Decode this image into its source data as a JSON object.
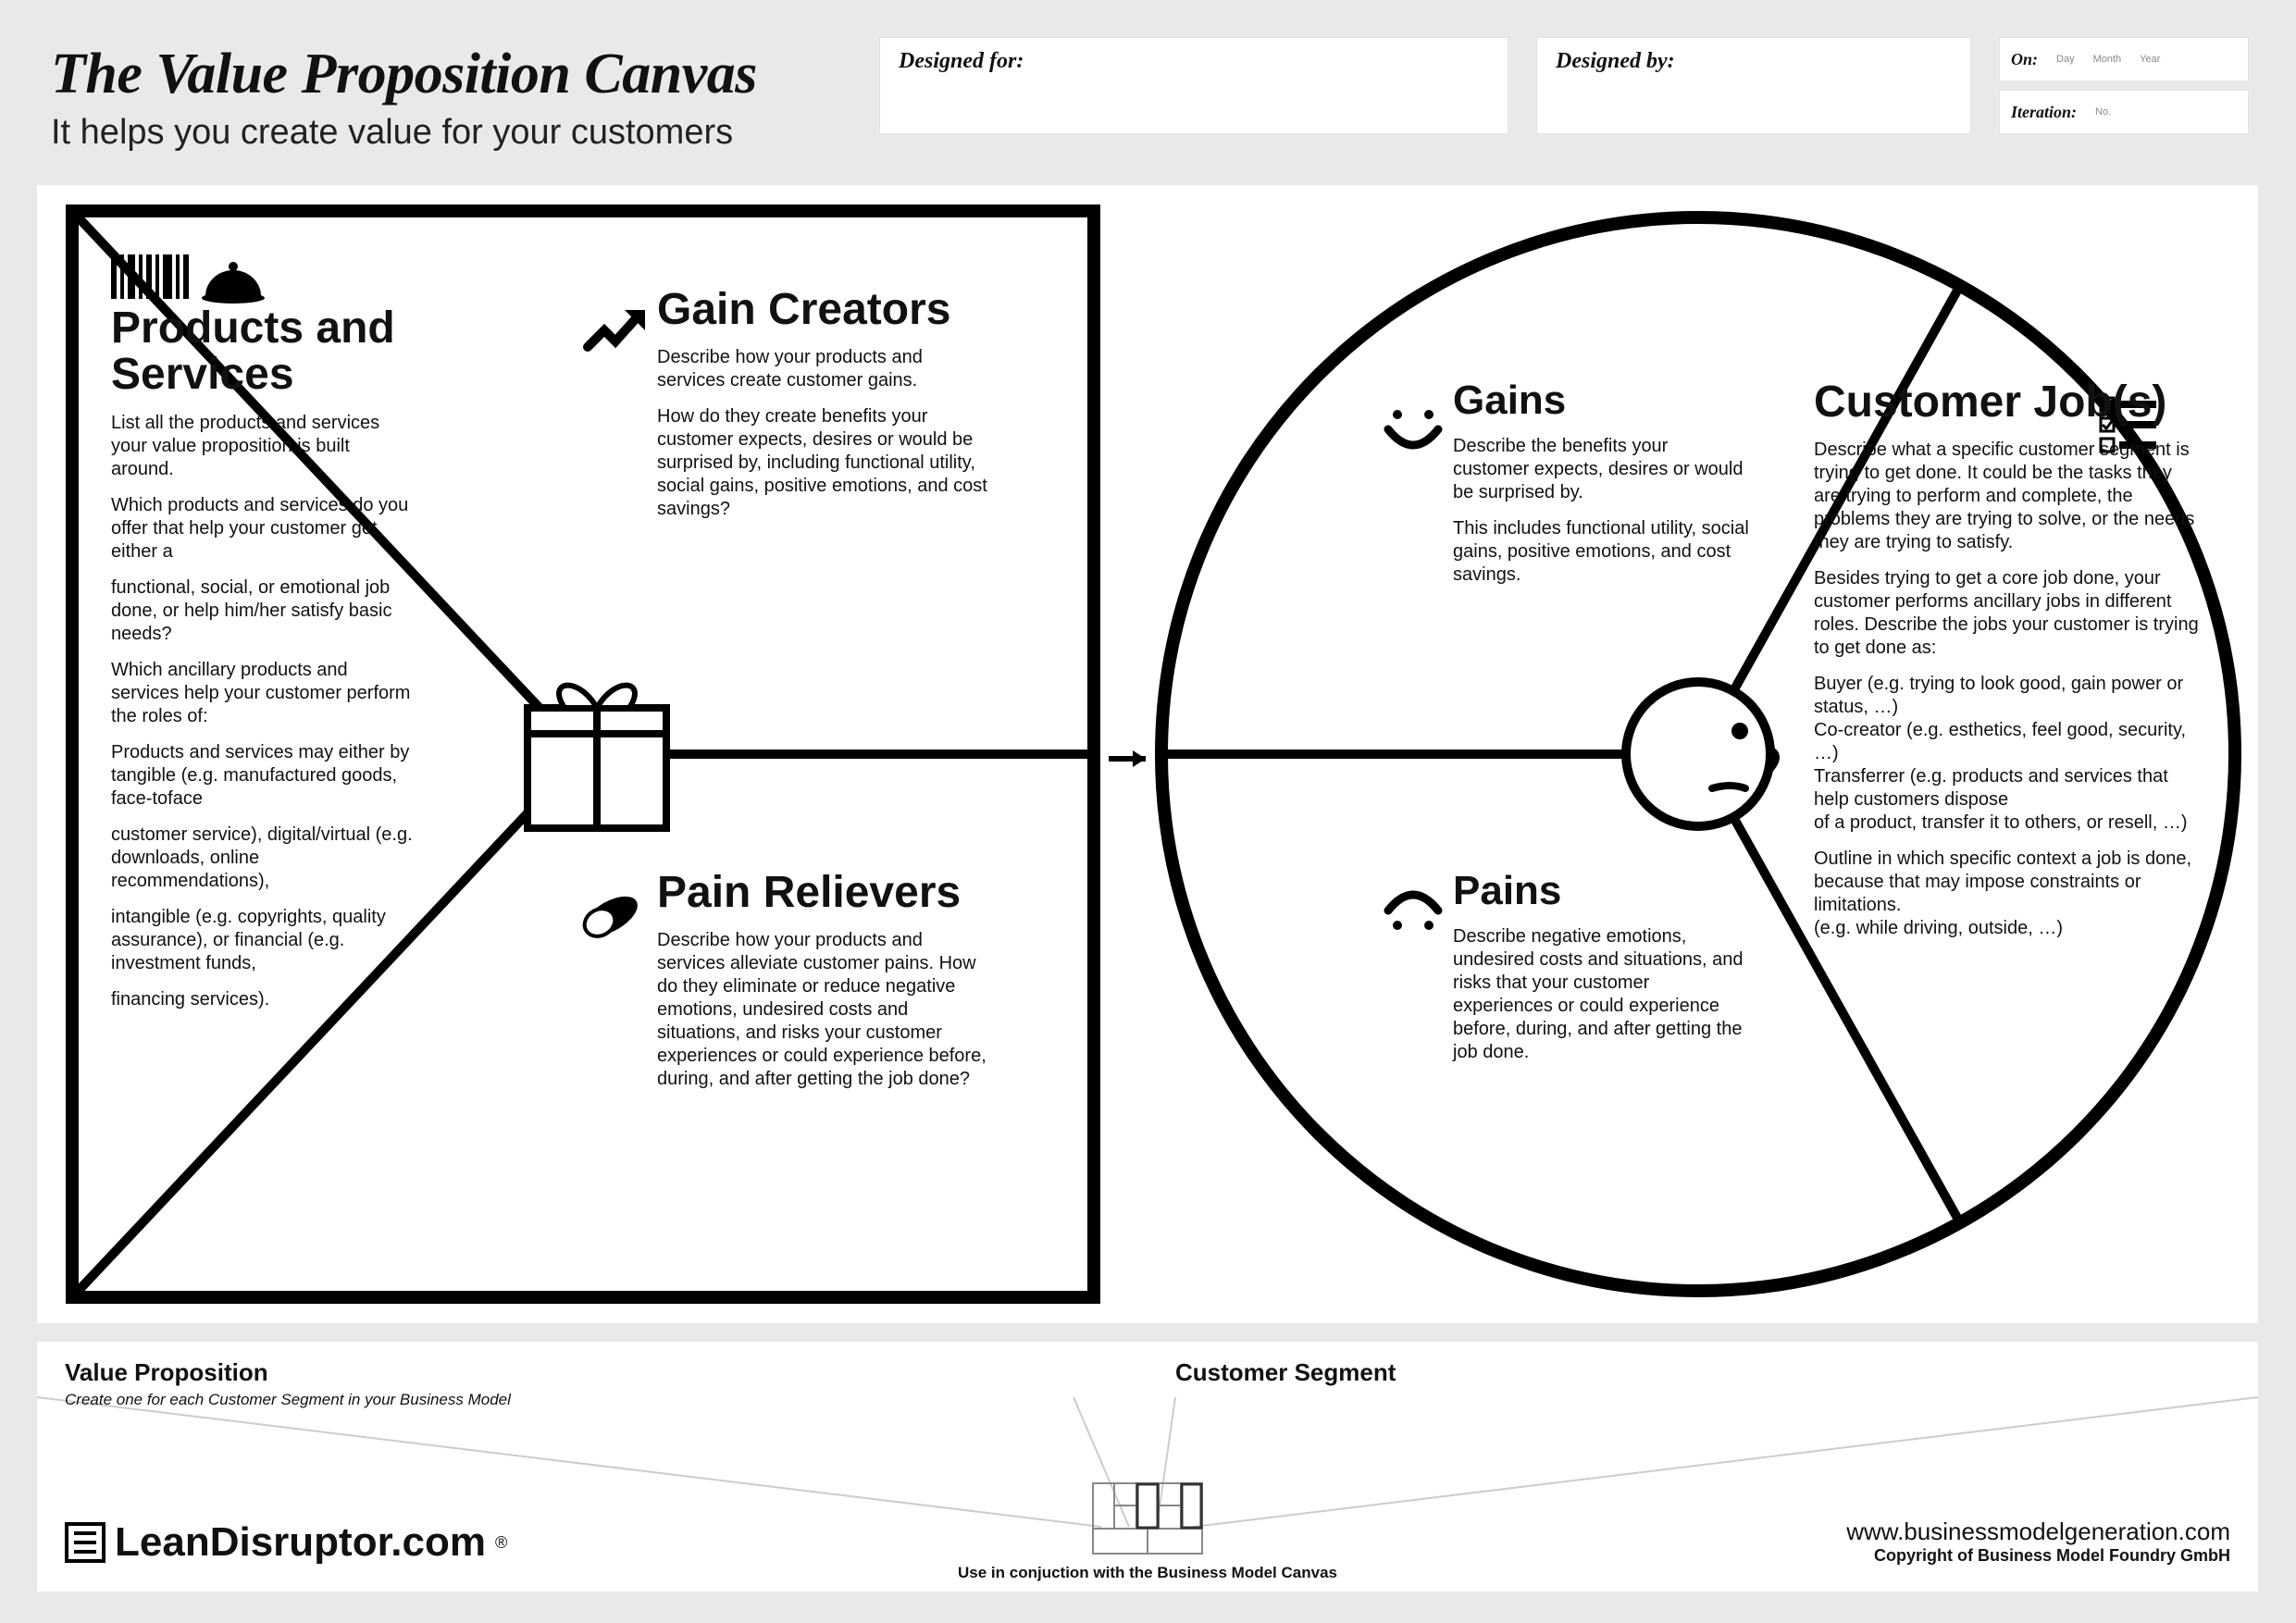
{
  "title": "The Value Proposition Canvas",
  "subtitle": "It helps you create value for your customers",
  "meta": {
    "designed_for_label": "Designed for:",
    "designed_by_label": "Designed by:",
    "on_label": "On:",
    "iteration_label": "Iteration:",
    "day": "Day",
    "month": "Month",
    "year": "Year",
    "no": "No."
  },
  "style": {
    "stroke": "#000000",
    "stroke_width_heavy": 10,
    "stroke_width_med": 8,
    "bg_page": "#e9e9e9",
    "bg_panel": "#ffffff"
  },
  "square": {
    "products_services": {
      "title": "Products and Services",
      "body": [
        "List all the products and services your value proposition is built around.",
        "Which products and services do you offer that help your customer get either a",
        "functional, social, or emotional job done, or help him/her satisfy basic needs?",
        "Which ancillary products and services help your customer perform the roles of:",
        "Products and services may either by tangible (e.g. manufactured goods, face-toface",
        "customer service), digital/virtual (e.g. downloads, online recommendations),",
        "intangible (e.g. copyrights, quality assurance), or financial (e.g. investment funds,",
        "financing services)."
      ]
    },
    "gain_creators": {
      "title": "Gain Creators",
      "body": [
        "Describe how your products and services create customer gains.",
        "How do they create benefits your customer expects, desires or would be surprised by, including functional utility, social gains, positive emotions, and cost savings?"
      ]
    },
    "pain_relievers": {
      "title": "Pain Relievers",
      "body": [
        "Describe how your products and services alleviate customer pains. How do they eliminate or reduce negative emotions, undesired costs and situations, and risks your customer experiences or could experience before, during, and after getting the job done?"
      ]
    }
  },
  "circle": {
    "gains": {
      "title": "Gains",
      "body": [
        "Describe the benefits your customer expects, desires or would be surprised by.",
        "This includes functional utility, social gains, positive emotions, and cost savings."
      ]
    },
    "pains": {
      "title": "Pains",
      "body": [
        "Describe negative emotions, undesired costs and situations, and risks that your customer experiences or could experience before, during, and after getting the job done."
      ]
    },
    "customer_jobs": {
      "title": "Customer Job(s)",
      "body": [
        "Describe what a specific customer segment is trying to get done. It could be the tasks they are trying to perform and complete, the problems they are trying to solve, or the needs they are trying to satisfy.",
        "Besides trying to get a core job done, your customer performs ancillary jobs in different roles. Describe the jobs your customer is trying to get done as:",
        "Buyer (e.g. trying to look good, gain power or status, …)\nCo-creator (e.g. esthetics, feel good, security, …)\nTransferrer (e.g. products and services that help customers dispose\nof a product, transfer it to others, or resell, …)",
        "Outline in which specific context a job is done, because that may impose constraints or limitations.\n(e.g. while driving, outside, …)"
      ]
    }
  },
  "bottom": {
    "vp_title": "Value Proposition",
    "vp_sub": "Create one for each Customer Segment in your Business Model",
    "cs_title": "Customer Segment",
    "brand": "LeanDisruptor.com",
    "brand_mark": "®",
    "bmc_note": "Use in conjuction with the Business Model Canvas",
    "credits_url": "www.businessmodelgeneration.com",
    "credits_copy": "Copyright of Business Model Foundry GmbH"
  }
}
